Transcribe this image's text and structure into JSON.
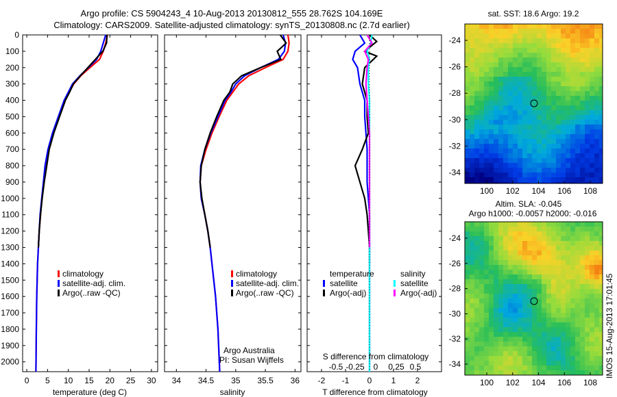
{
  "header": {
    "title_line1": "Argo profile: CS 5904243_4 10-Aug-2013 20130812_555 28.762S 104.169E",
    "title_line2": "Climatology: CARS2009. Satellite-adjusted climatology: synTS_20130808.nc (2.7d earlier)"
  },
  "colors": {
    "climatology": "#ff0000",
    "satellite": "#0000ff",
    "argo": "#000000",
    "salinity_satellite": "#00ffff",
    "salinity_argo": "#ff00ff"
  },
  "depth_axis": {
    "ylim": [
      0,
      2060
    ],
    "ticks": [
      0,
      100,
      200,
      300,
      400,
      500,
      600,
      700,
      800,
      900,
      1000,
      1100,
      1200,
      1300,
      1400,
      1500,
      1600,
      1700,
      1800,
      1900,
      2000
    ]
  },
  "legend_profiles": [
    "climatology",
    "satellite-adj. clim.",
    "Argo(..raw -QC)"
  ],
  "credits": {
    "line1": "Argo Australia",
    "line2": "PI: Susan Wijffels"
  },
  "diff_legend": {
    "temperature_title": "temperature",
    "salinity_title": "salinity",
    "t_items": [
      "satellite",
      "Argo(-adj)"
    ],
    "s_items": [
      "satellite",
      "Argo(-adj)"
    ]
  },
  "map_sst": {
    "title": "sat. SST: 18.6 Argo: 19.2",
    "yticks": [
      "-24",
      "-26",
      "-28",
      "-30",
      "-32",
      "-34"
    ],
    "xticks": [
      "100",
      "102",
      "104",
      "106",
      "108"
    ]
  },
  "map_sla": {
    "title_line1": "Altim. SLA: -0.045",
    "title_line2": "Argo h1000: -0.0057 h2000: -0.016",
    "yticks": [
      "-24",
      "-26",
      "-28",
      "-30",
      "-32",
      "-34"
    ],
    "xticks": [
      "100",
      "102",
      "104",
      "106",
      "108"
    ]
  },
  "side_stamp": "IMOS 15-Aug-2013 17:01:45",
  "chart_data": [
    {
      "type": "line",
      "name": "temperature",
      "xlabel": "temperature (deg C)",
      "xlim": [
        -1,
        31.5
      ],
      "xticks": [
        0,
        5,
        10,
        15,
        20,
        25,
        30
      ],
      "series": [
        {
          "name": "climatology",
          "x": [
            19.4,
            19.0,
            18.4,
            17.5,
            15.2,
            13.0,
            11.3,
            10.2,
            9.1,
            7.7,
            6.3,
            5.2,
            4.5,
            4.1,
            3.6,
            3.3,
            3.0,
            2.8,
            2.6,
            2.5,
            2.4,
            2.3,
            2.2
          ],
          "y": [
            0,
            50,
            100,
            150,
            200,
            250,
            300,
            350,
            400,
            500,
            600,
            700,
            800,
            900,
            1000,
            1100,
            1200,
            1300,
            1400,
            1500,
            1600,
            1800,
            2060
          ]
        },
        {
          "name": "satellite-adj. clim.",
          "x": [
            19.0,
            18.4,
            17.8,
            16.8,
            14.8,
            12.8,
            11.0,
            10.0,
            9.0,
            7.6,
            6.2,
            5.1,
            4.4,
            4.0,
            3.6,
            3.2,
            3.0,
            2.8,
            2.6,
            2.5,
            2.4,
            2.3,
            2.2
          ],
          "y": [
            0,
            50,
            100,
            150,
            200,
            250,
            300,
            350,
            400,
            500,
            600,
            700,
            800,
            900,
            1000,
            1100,
            1200,
            1300,
            1400,
            1500,
            1600,
            1800,
            2060
          ]
        },
        {
          "name": "Argo(..raw -QC)",
          "x": [
            19.3,
            19.2,
            18.3,
            16.5,
            14.7,
            12.9,
            11.2,
            10.3,
            9.3,
            7.9,
            6.5,
            5.4,
            4.8,
            4.2,
            3.7,
            3.3,
            3.0,
            2.8
          ],
          "y": [
            0,
            50,
            100,
            150,
            200,
            250,
            300,
            350,
            400,
            500,
            600,
            700,
            800,
            900,
            1000,
            1100,
            1200,
            1300
          ]
        }
      ]
    },
    {
      "type": "line",
      "name": "salinity",
      "xlabel": "salinity",
      "xlim": [
        33.8,
        36.1
      ],
      "xticks": [
        34,
        34.5,
        35,
        35.5,
        36
      ],
      "series": [
        {
          "name": "climatology",
          "x": [
            35.88,
            35.9,
            35.88,
            35.8,
            35.5,
            35.22,
            35.05,
            34.95,
            34.85,
            34.72,
            34.6,
            34.5,
            34.42,
            34.4,
            34.42,
            34.48,
            34.53,
            34.57,
            34.6,
            34.63,
            34.66,
            34.7,
            34.73
          ],
          "y": [
            0,
            50,
            100,
            150,
            200,
            250,
            300,
            350,
            400,
            500,
            600,
            700,
            800,
            900,
            1000,
            1100,
            1200,
            1300,
            1400,
            1500,
            1600,
            1800,
            2060
          ]
        },
        {
          "name": "satellite-adj. clim.",
          "x": [
            35.8,
            35.84,
            35.82,
            35.72,
            35.42,
            35.15,
            35.0,
            34.92,
            34.82,
            34.7,
            34.58,
            34.48,
            34.41,
            34.4,
            34.42,
            34.48,
            34.53,
            34.57,
            34.6,
            34.63,
            34.66,
            34.7,
            34.73
          ],
          "y": [
            0,
            50,
            100,
            150,
            200,
            250,
            300,
            350,
            400,
            500,
            600,
            700,
            800,
            900,
            1000,
            1100,
            1200,
            1300,
            1400,
            1500,
            1600,
            1800,
            2060
          ]
        },
        {
          "name": "Argo(..raw -QC)",
          "x": [
            35.75,
            35.85,
            35.7,
            35.76,
            35.42,
            35.1,
            34.95,
            34.9,
            34.8,
            34.68,
            34.57,
            34.48,
            34.42,
            34.4,
            34.43,
            34.48,
            34.53,
            34.57
          ],
          "y": [
            0,
            50,
            100,
            150,
            200,
            250,
            300,
            350,
            400,
            500,
            600,
            700,
            800,
            900,
            1000,
            1100,
            1200,
            1300
          ]
        }
      ]
    },
    {
      "type": "line",
      "name": "differences",
      "xlabel": "T difference from climatology",
      "xlabel_top": "S difference from climatology",
      "xlim": [
        -2.6,
        3.0
      ],
      "xticks": [
        -2,
        -1,
        0,
        1,
        2
      ],
      "s_ticks": [
        "-0.5",
        "-0.25",
        "0",
        "0.25",
        "0.5"
      ],
      "series": [
        {
          "name": "temperature satellite",
          "x": [
            -0.4,
            -0.2,
            -0.6,
            -0.7,
            -0.5,
            -0.4,
            -0.2,
            -0.2,
            -0.15,
            -0.1,
            -0.1,
            -0.1,
            -0.05,
            0,
            0,
            0,
            0,
            0
          ],
          "y": [
            0,
            50,
            100,
            150,
            200,
            300,
            400,
            500,
            600,
            700,
            800,
            900,
            1000,
            1100,
            1300,
            1500,
            1800,
            2060
          ]
        },
        {
          "name": "temperature Argo(-adj)",
          "x": [
            0.0,
            0.3,
            -0.2,
            0.3,
            -0.2,
            -0.3,
            -0.1,
            -0.1,
            -0.05,
            -0.3,
            -0.6,
            -0.4,
            -0.2,
            -0.1,
            -0.05,
            0,
            0
          ],
          "y": [
            0,
            40,
            100,
            130,
            200,
            300,
            400,
            500,
            600,
            700,
            800,
            900,
            1000,
            1100,
            1200,
            1300,
            1400
          ]
        },
        {
          "name": "salinity satellite",
          "x": [
            0.1,
            0.05,
            -0.1,
            0.0,
            -0.05,
            -0.05,
            0,
            0,
            0,
            0,
            0,
            0,
            0,
            0,
            0,
            0,
            0
          ],
          "y": [
            0,
            50,
            100,
            150,
            200,
            300,
            400,
            500,
            600,
            700,
            800,
            900,
            1000,
            1200,
            1500,
            1800,
            2060
          ]
        },
        {
          "name": "salinity Argo(-adj)",
          "x": [
            -0.1,
            0.1,
            -0.2,
            -0.05,
            -0.1,
            -0.15,
            -0.1,
            -0.05,
            0,
            0,
            0,
            0,
            0,
            0
          ],
          "y": [
            0,
            50,
            100,
            150,
            200,
            300,
            400,
            500,
            600,
            700,
            800,
            900,
            1000,
            1300
          ]
        }
      ]
    }
  ]
}
